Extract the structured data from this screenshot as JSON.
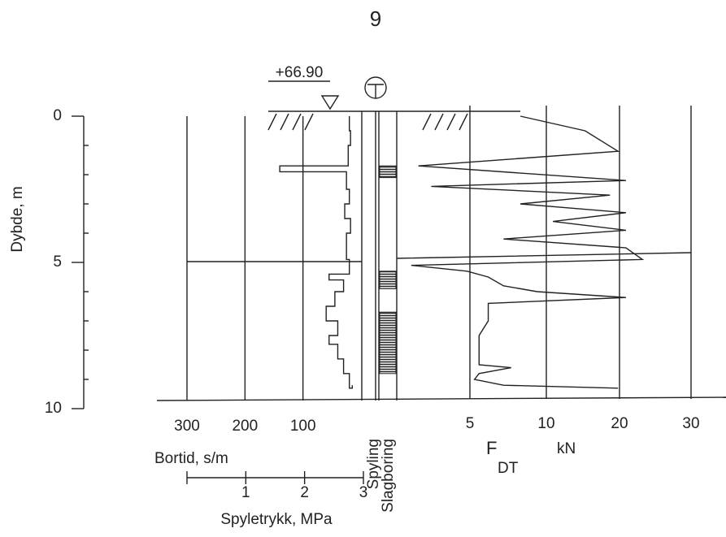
{
  "page_number": "9",
  "elevation": "+66.90",
  "chart_data": {
    "type": "sounding",
    "ylabel": "Dybde, m",
    "ylim": [
      0,
      10
    ],
    "yticks": [
      0,
      5,
      10
    ],
    "yminor": [
      1,
      2,
      3,
      4,
      6,
      7,
      8,
      9
    ],
    "bortid": {
      "xlabel": "Bortid, s/m",
      "xlim": [
        300,
        0
      ],
      "xticks": [
        300,
        200,
        100
      ],
      "depth": [
        0,
        0.5,
        1.0,
        1.7,
        1.9,
        2.5,
        3.0,
        3.5,
        4.0,
        4.9,
        5.4,
        5.6,
        6.0,
        6.5,
        7.0,
        7.5,
        7.8,
        8.3,
        8.8,
        9.3
      ],
      "values": [
        20,
        18,
        22,
        140,
        25,
        20,
        28,
        18,
        25,
        20,
        55,
        30,
        45,
        60,
        40,
        55,
        40,
        30,
        20,
        15
      ]
    },
    "spyletrykk": {
      "xlabel": "Spyletrykk, MPa",
      "xlim": [
        0,
        3
      ],
      "xticks": [
        1,
        2,
        3
      ]
    },
    "columns": [
      "Spyling",
      "Slagboring"
    ],
    "slagboring_intervals": [
      [
        1.7,
        2.1
      ],
      [
        5.3,
        5.9
      ],
      [
        6.7,
        8.8
      ]
    ],
    "fdt": {
      "xlabel_main": "F",
      "xlabel_sub": "DT",
      "xlabel_unit": "kN",
      "xlim": [
        0,
        30
      ],
      "xticks": [
        5,
        10,
        20,
        30
      ],
      "depth": [
        0,
        0.5,
        1.2,
        1.7,
        2.2,
        2.4,
        2.7,
        3.0,
        3.3,
        3.6,
        3.9,
        4.2,
        4.5,
        4.9,
        5.1,
        5.3,
        5.5,
        5.8,
        6.0,
        6.2,
        6.4,
        6.6,
        7.0,
        7.5,
        8.0,
        8.5,
        8.6,
        8.8,
        9.0,
        9.2,
        9.3
      ],
      "values": [
        8.3,
        15.3,
        19.8,
        1.4,
        20.9,
        2.3,
        18.7,
        8.3,
        20.9,
        10.9,
        20.9,
        7.2,
        20.9,
        23.2,
        0.9,
        4.8,
        6.2,
        7.2,
        9.4,
        20.9,
        6.2,
        6.2,
        6.2,
        5.6,
        5.6,
        5.6,
        7.7,
        5.6,
        5.3,
        7.2,
        19.8
      ]
    }
  }
}
